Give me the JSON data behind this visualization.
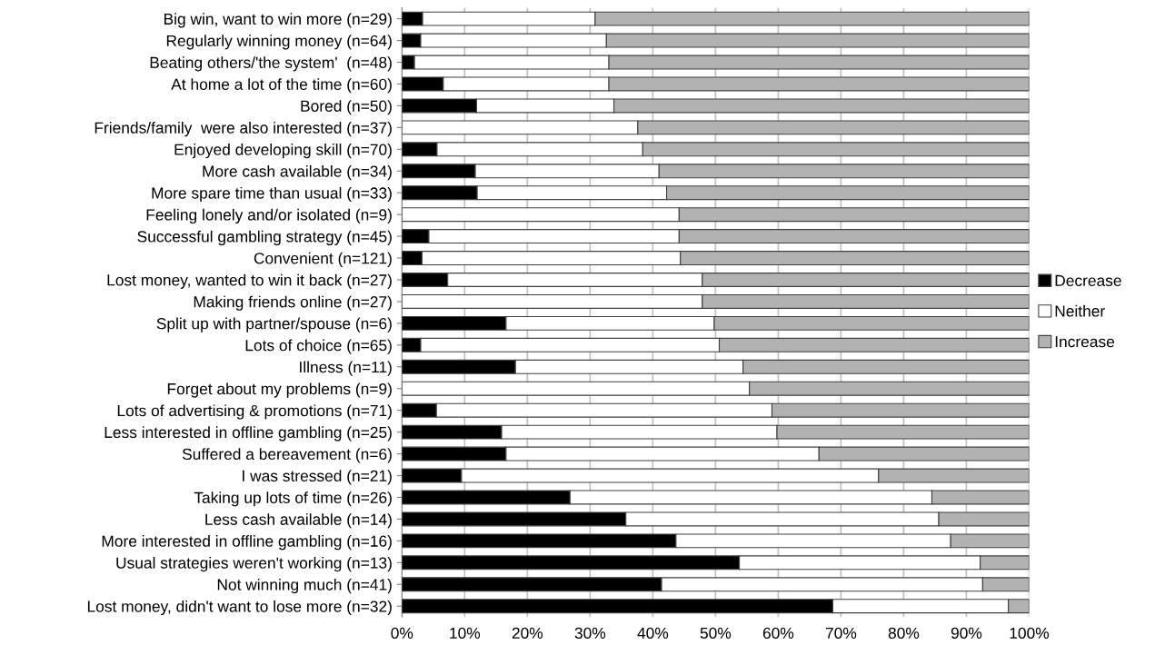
{
  "chart_data": {
    "type": "bar",
    "orientation": "horizontal",
    "stacked": true,
    "categories": [
      "Big win, want to win more (n=29)",
      "Regularly winning money (n=64)",
      "Beating others/'the system'  (n=48)",
      "At home a lot of the time (n=60)",
      "Bored (n=50)",
      "Friends/family  were also interested (n=37)",
      "Enjoyed developing skill (n=70)",
      "More cash available (n=34)",
      "More spare time than usual (n=33)",
      "Feeling lonely and/or isolated (n=9)",
      "Successful gambling strategy (n=45)",
      "Convenient (n=121)",
      "Lost money, wanted to win it back (n=27)",
      "Making friends online (n=27)",
      "Split up with partner/spouse (n=6)",
      "Lots of choice (n=65)",
      "Illness (n=11)",
      "Forget about my problems (n=9)",
      "Lots of advertising & promotions (n=71)",
      "Less interested in offline gambling (n=25)",
      "Suffered a bereavement (n=6)",
      "I was stressed (n=21)",
      "Taking up lots of time (n=26)",
      "Less cash available (n=14)",
      "More interested in offline gambling (n=16)",
      "Usual strategies weren't working (n=13)",
      "Not winning much (n=41)",
      "Lost money, didn't want to lose more (n=32)"
    ],
    "series": [
      {
        "name": "Decrease",
        "color": "#000000",
        "values": [
          3.3,
          3.0,
          2.0,
          6.6,
          11.9,
          0,
          5.6,
          11.7,
          12.0,
          0,
          4.3,
          3.2,
          7.3,
          0,
          16.6,
          3.0,
          18.1,
          0,
          5.5,
          15.9,
          16.6,
          9.5,
          26.8,
          35.7,
          43.7,
          53.8,
          41.4,
          68.7
        ]
      },
      {
        "name": "Neither",
        "color": "#ffffff",
        "values": [
          27.5,
          29.6,
          31.0,
          26.4,
          21.9,
          37.6,
          32.8,
          29.3,
          30.2,
          44.2,
          39.9,
          41.2,
          40.6,
          47.9,
          33.2,
          47.6,
          36.3,
          55.4,
          53.5,
          43.9,
          49.9,
          66.5,
          57.7,
          49.9,
          43.8,
          38.4,
          51.2,
          28.0
        ]
      },
      {
        "name": "Increase",
        "color": "#b2b2b2",
        "values": [
          69.2,
          67.4,
          67.0,
          67.0,
          66.2,
          62.4,
          61.6,
          59.0,
          57.8,
          55.8,
          55.8,
          55.6,
          52.1,
          52.1,
          50.2,
          49.4,
          45.6,
          44.6,
          41.0,
          40.2,
          33.5,
          24.0,
          15.5,
          14.4,
          12.5,
          7.8,
          7.4,
          3.3
        ]
      }
    ],
    "xlim": [
      0,
      100
    ],
    "xticks": [
      {
        "value": 0,
        "label": "0%"
      },
      {
        "value": 10,
        "label": "10%"
      },
      {
        "value": 20,
        "label": "20%"
      },
      {
        "value": 30,
        "label": "30%"
      },
      {
        "value": 40,
        "label": "40%"
      },
      {
        "value": 50,
        "label": "50%"
      },
      {
        "value": 60,
        "label": "60%"
      },
      {
        "value": 70,
        "label": "70%"
      },
      {
        "value": 80,
        "label": "80%"
      },
      {
        "value": 90,
        "label": "90%"
      },
      {
        "value": 100,
        "label": "100%"
      }
    ],
    "grid": "x",
    "legend": "right"
  }
}
